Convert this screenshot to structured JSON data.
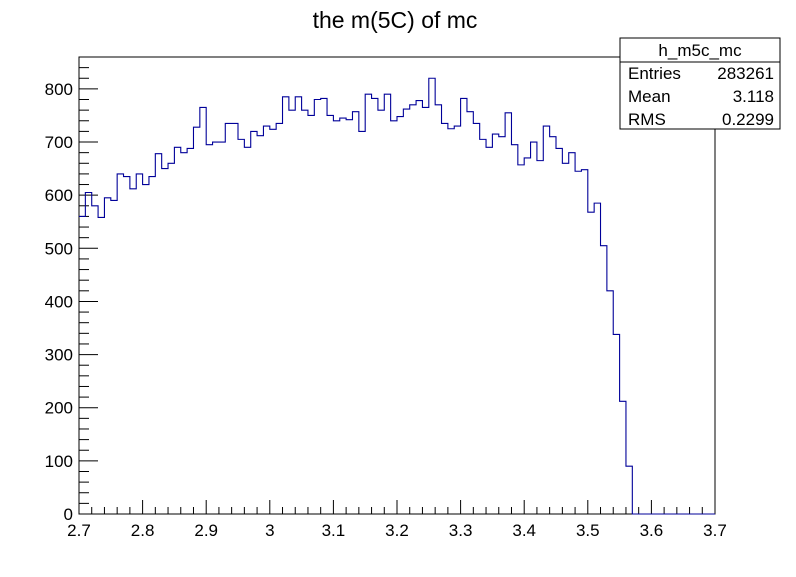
{
  "chart_data": {
    "type": "histogram",
    "title": "the m(5C) of mc",
    "xlabel": "",
    "ylabel": "",
    "xlim": [
      2.7,
      3.7
    ],
    "ylim": [
      0,
      860
    ],
    "x_ticks": [
      "2.7",
      "2.8",
      "2.9",
      "3",
      "3.1",
      "3.2",
      "3.3",
      "3.4",
      "3.5",
      "3.6",
      "3.7"
    ],
    "y_ticks": [
      "0",
      "100",
      "200",
      "300",
      "400",
      "500",
      "600",
      "700",
      "800"
    ],
    "grid": false,
    "line_color": "#000099",
    "bin_width": 0.01,
    "bin_start": 2.7,
    "series": [
      {
        "name": "",
        "values": [
          560,
          605,
          580,
          558,
          595,
          590,
          640,
          635,
          612,
          640,
          620,
          635,
          678,
          650,
          660,
          690,
          680,
          688,
          728,
          765,
          695,
          700,
          700,
          735,
          735,
          705,
          690,
          720,
          712,
          730,
          724,
          735,
          785,
          760,
          785,
          760,
          750,
          780,
          782,
          750,
          740,
          745,
          742,
          757,
          720,
          790,
          782,
          760,
          790,
          740,
          748,
          762,
          770,
          778,
          765,
          820,
          770,
          735,
          725,
          730,
          782,
          757,
          735,
          705,
          690,
          715,
          710,
          755,
          695,
          657,
          670,
          700,
          665,
          730,
          710,
          688,
          660,
          680,
          645,
          648,
          568,
          585,
          505,
          420,
          338,
          212,
          90,
          0,
          0,
          0,
          0,
          0,
          0,
          0,
          0,
          0,
          0,
          0,
          0,
          0
        ]
      }
    ],
    "stats_box": {
      "title": "h_m5c_mc",
      "rows": [
        {
          "label": "Entries",
          "value": "283261"
        },
        {
          "label": "Mean",
          "value": "3.118"
        },
        {
          "label": "RMS",
          "value": "0.2299"
        }
      ]
    }
  }
}
